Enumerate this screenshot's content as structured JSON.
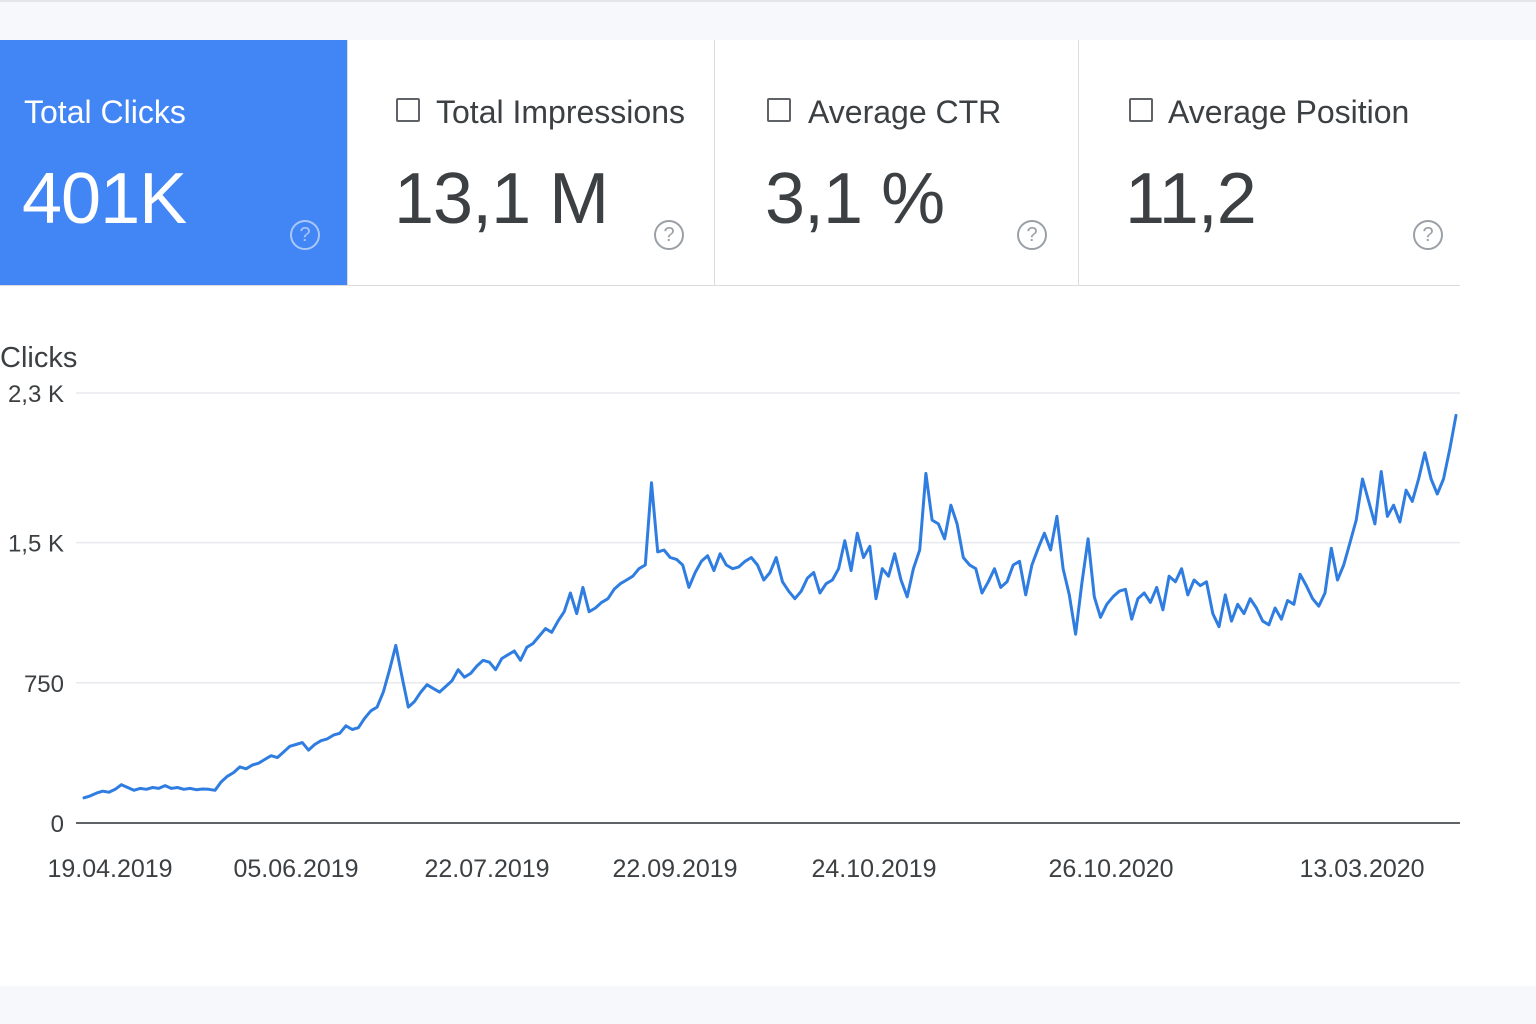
{
  "metrics": [
    {
      "label": "Total Clicks",
      "value": "401K",
      "selected": true,
      "help": "?"
    },
    {
      "label": "Total Impressions",
      "value": "13,1 M",
      "selected": false,
      "help": "?"
    },
    {
      "label": "Average CTR",
      "value": "3,1 %",
      "selected": false,
      "help": "?"
    },
    {
      "label": "Average Position",
      "value": "11,2",
      "selected": false,
      "help": "?"
    }
  ],
  "colors": {
    "accent": "#4285f4",
    "line": "#2f7de1",
    "grid": "#e8eaed",
    "axis": "#5f6368",
    "text": "#3c4043"
  },
  "chart_data": {
    "type": "line",
    "ylabel": "Clicks",
    "ylim": [
      0,
      2300
    ],
    "yticks": [
      0,
      750,
      1500,
      2300
    ],
    "ytick_labels": [
      "0",
      "750",
      "1,5 K",
      "2,3 K"
    ],
    "xtick_labels": [
      "19.04.2019",
      "05.06.2019",
      "22.07.2019",
      "22.09.2019",
      "24.10.2019",
      "26.10.2020",
      "13.03.2020"
    ],
    "grid": true,
    "series": [
      {
        "values": [
          135,
          145,
          160,
          170,
          165,
          180,
          205,
          190,
          175,
          185,
          180,
          190,
          185,
          200,
          185,
          190,
          180,
          185,
          178,
          182,
          180,
          175,
          220,
          250,
          270,
          300,
          290,
          310,
          320,
          340,
          360,
          350,
          380,
          410,
          420,
          430,
          390,
          420,
          440,
          450,
          470,
          480,
          520,
          500,
          510,
          560,
          600,
          620,
          700,
          820,
          950,
          780,
          620,
          650,
          700,
          740,
          720,
          700,
          730,
          760,
          820,
          780,
          800,
          840,
          870,
          860,
          820,
          880,
          900,
          920,
          870,
          940,
          960,
          1000,
          1040,
          1020,
          1080,
          1130,
          1230,
          1120,
          1260,
          1130,
          1150,
          1180,
          1200,
          1250,
          1280,
          1300,
          1320,
          1360,
          1380,
          1820,
          1450,
          1460,
          1420,
          1410,
          1380,
          1260,
          1340,
          1400,
          1430,
          1350,
          1440,
          1380,
          1360,
          1370,
          1400,
          1420,
          1380,
          1300,
          1340,
          1420,
          1290,
          1240,
          1200,
          1240,
          1310,
          1340,
          1230,
          1280,
          1300,
          1360,
          1510,
          1350,
          1550,
          1420,
          1480,
          1200,
          1360,
          1320,
          1440,
          1300,
          1210,
          1360,
          1460,
          1870,
          1620,
          1600,
          1520,
          1700,
          1600,
          1420,
          1380,
          1360,
          1230,
          1290,
          1360,
          1260,
          1290,
          1380,
          1400,
          1220,
          1380,
          1470,
          1550,
          1460,
          1640,
          1360,
          1220,
          1010,
          1280,
          1520,
          1210,
          1100,
          1170,
          1210,
          1240,
          1250,
          1090,
          1200,
          1230,
          1180,
          1260,
          1140,
          1320,
          1290,
          1360,
          1220,
          1300,
          1270,
          1290,
          1120,
          1050,
          1220,
          1080,
          1170,
          1120,
          1200,
          1150,
          1080,
          1060,
          1150,
          1090,
          1190,
          1170,
          1330,
          1270,
          1200,
          1160,
          1230,
          1470,
          1300,
          1380,
          1500,
          1620,
          1840,
          1720,
          1600,
          1880,
          1640,
          1700,
          1610,
          1780,
          1720,
          1840,
          1980,
          1840,
          1760,
          1840,
          2000,
          2180
        ]
      }
    ]
  }
}
